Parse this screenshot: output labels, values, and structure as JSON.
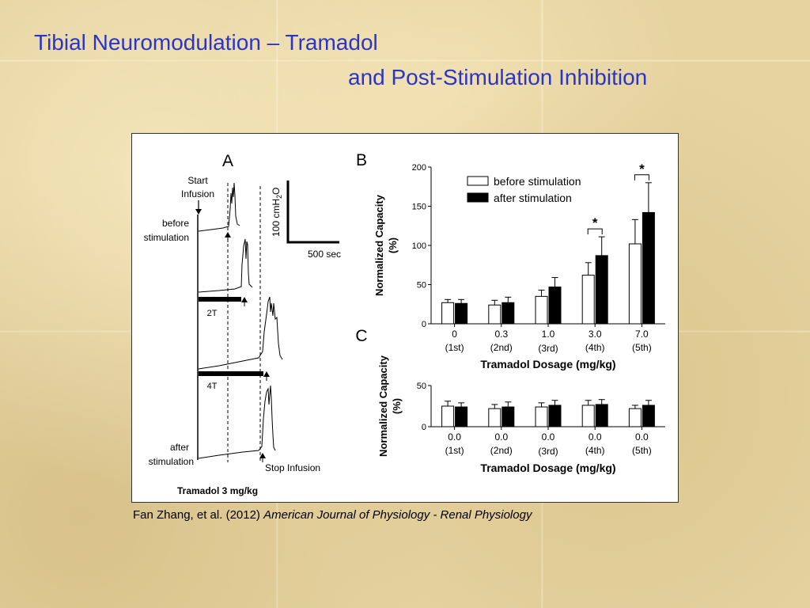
{
  "slide": {
    "title_line1": "Tibial Neuromodulation – Tramadol",
    "title_line2": "and Post-Stimulation Inhibition",
    "citation_authors": "Fan Zhang, et al. (2012) ",
    "citation_journal": "American Journal of  Physiology - Renal  Physiology"
  },
  "panel_a": {
    "label": "A",
    "start_infusion_line1": "Start",
    "start_infusion_line2": "Infusion",
    "before_line1": "before",
    "before_line2": "stimulation",
    "after_line1": "after",
    "after_line2": "stimulation",
    "stim_2t": "2T",
    "stim_4t": "4T",
    "stop_infusion": "Stop Infusion",
    "footer": "Tramadol 3 mg/kg",
    "scale_pressure": "100 cmH",
    "scale_pressure_sub": "2",
    "scale_pressure_tail": "O",
    "scale_time": "500 sec"
  },
  "chart_data": [
    {
      "panel": "B",
      "type": "bar",
      "categories": [
        "0",
        "0.3",
        "1.0",
        "3.0",
        "7.0"
      ],
      "category_sublabels": [
        "(1st)",
        "(2nd)",
        "(3rd)",
        "(4th)",
        "(5th)"
      ],
      "series": [
        {
          "name": "before stimulation",
          "values": [
            27,
            24,
            35,
            62,
            102
          ],
          "errors": [
            4,
            6,
            8,
            16,
            31
          ],
          "color": "#ffffff"
        },
        {
          "name": "after stimulation",
          "values": [
            26,
            27,
            47,
            87,
            142
          ],
          "errors": [
            5,
            7,
            12,
            24,
            38
          ],
          "color": "#000000"
        }
      ],
      "significance": [
        {
          "category": "3.0",
          "mark": "*"
        },
        {
          "category": "7.0",
          "mark": "*"
        }
      ],
      "xlabel": "Tramadol Dosage (mg/kg)",
      "ylabel_line1": "Normalized Capacity",
      "ylabel_line2": "(%)",
      "ylim": [
        0,
        200
      ],
      "yticks": [
        "0",
        "50",
        "100",
        "150",
        "200"
      ],
      "legend_position": "top-left"
    },
    {
      "panel": "C",
      "type": "bar",
      "categories": [
        "0.0",
        "0.0",
        "0.0",
        "0.0",
        "0.0"
      ],
      "category_sublabels": [
        "(1st)",
        "(2nd)",
        "(3rd)",
        "(4th)",
        "(5th)"
      ],
      "series": [
        {
          "values": [
            25,
            22,
            24,
            26,
            22
          ],
          "errors": [
            6,
            5,
            5,
            6,
            4
          ],
          "color": "#ffffff"
        },
        {
          "values": [
            24,
            24,
            26,
            27,
            26
          ],
          "errors": [
            5,
            6,
            6,
            6,
            6
          ],
          "color": "#000000"
        }
      ],
      "xlabel": "Tramadol Dosage (mg/kg)",
      "ylabel_line1": "Normalized Capacity",
      "ylabel_line2": "(%)",
      "ylim": [
        0,
        50
      ],
      "yticks": [
        "0",
        "50"
      ]
    }
  ]
}
